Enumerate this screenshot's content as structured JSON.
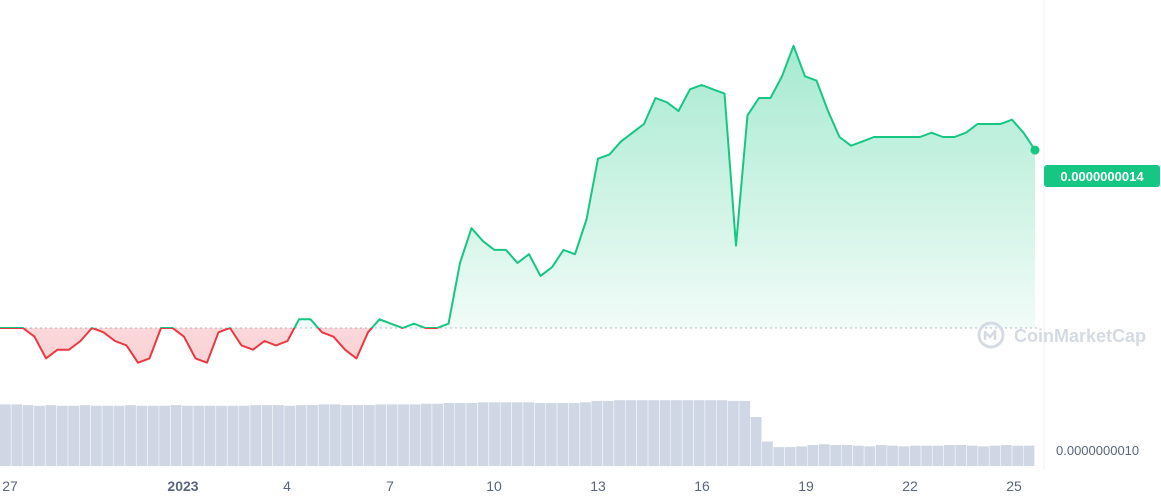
{
  "chart_data": {
    "type": "line",
    "baseline_value": 1e-09,
    "price_label": "0.0000000014",
    "y_tick_label": "0.0000000010",
    "x_tick_labels": [
      "27",
      "2023",
      "4",
      "7",
      "10",
      "13",
      "16",
      "19",
      "22",
      "25"
    ],
    "x": [
      0,
      1,
      2,
      3,
      4,
      5,
      6,
      7,
      8,
      9,
      10,
      11,
      12,
      13,
      14,
      15,
      16,
      17,
      18,
      19,
      20,
      21,
      22,
      23,
      24,
      25,
      26,
      27,
      28,
      29,
      30,
      31,
      32,
      33,
      34,
      35,
      36,
      37,
      38,
      39,
      40,
      41,
      42,
      43,
      44,
      45,
      46,
      47,
      48,
      49,
      50,
      51,
      52,
      53,
      54,
      55,
      56,
      57,
      58,
      59,
      60,
      61,
      62,
      63,
      64,
      65,
      66,
      67,
      68,
      69,
      70,
      71,
      72,
      73,
      74,
      75,
      76,
      77,
      78,
      79,
      80,
      81,
      82,
      83,
      84,
      85,
      86,
      87,
      88,
      89,
      90
    ],
    "values": [
      1.0,
      1.0,
      1.0,
      0.98,
      0.93,
      0.95,
      0.95,
      0.97,
      1.0,
      0.99,
      0.97,
      0.96,
      0.92,
      0.93,
      1.0,
      1.0,
      0.98,
      0.93,
      0.92,
      0.99,
      1.0,
      0.96,
      0.95,
      0.97,
      0.96,
      0.97,
      1.02,
      1.02,
      0.99,
      0.98,
      0.95,
      0.93,
      0.99,
      1.02,
      1.01,
      1.0,
      1.01,
      1.0,
      1.0,
      1.01,
      1.15,
      1.23,
      1.2,
      1.18,
      1.18,
      1.15,
      1.17,
      1.12,
      1.14,
      1.18,
      1.17,
      1.25,
      1.39,
      1.4,
      1.43,
      1.45,
      1.47,
      1.53,
      1.52,
      1.5,
      1.55,
      1.56,
      1.55,
      1.54,
      1.19,
      1.49,
      1.53,
      1.53,
      1.58,
      1.65,
      1.58,
      1.57,
      1.5,
      1.44,
      1.42,
      1.43,
      1.44,
      1.44,
      1.44,
      1.44,
      1.44,
      1.45,
      1.44,
      1.44,
      1.45,
      1.47,
      1.47,
      1.47,
      1.48,
      1.45,
      1.41
    ],
    "volume": [
      0.88,
      0.88,
      0.87,
      0.86,
      0.87,
      0.86,
      0.86,
      0.87,
      0.86,
      0.86,
      0.86,
      0.87,
      0.86,
      0.86,
      0.86,
      0.87,
      0.86,
      0.86,
      0.86,
      0.86,
      0.86,
      0.86,
      0.87,
      0.87,
      0.87,
      0.86,
      0.87,
      0.87,
      0.88,
      0.88,
      0.87,
      0.87,
      0.87,
      0.88,
      0.88,
      0.88,
      0.88,
      0.89,
      0.89,
      0.9,
      0.9,
      0.9,
      0.91,
      0.91,
      0.91,
      0.91,
      0.91,
      0.9,
      0.9,
      0.9,
      0.9,
      0.91,
      0.93,
      0.93,
      0.94,
      0.94,
      0.94,
      0.94,
      0.94,
      0.94,
      0.94,
      0.94,
      0.94,
      0.94,
      0.93,
      0.93,
      0.7,
      0.35,
      0.27,
      0.27,
      0.28,
      0.3,
      0.31,
      0.3,
      0.3,
      0.29,
      0.28,
      0.3,
      0.29,
      0.28,
      0.29,
      0.29,
      0.29,
      0.3,
      0.3,
      0.29,
      0.28,
      0.29,
      0.3,
      0.29,
      0.29
    ],
    "colors": {
      "up": "#16c784",
      "down": "#ea3943",
      "volume": "#cfd6e4",
      "axis_text": "#58667e"
    },
    "grid": false,
    "watermark": "CoinMarketCap"
  }
}
